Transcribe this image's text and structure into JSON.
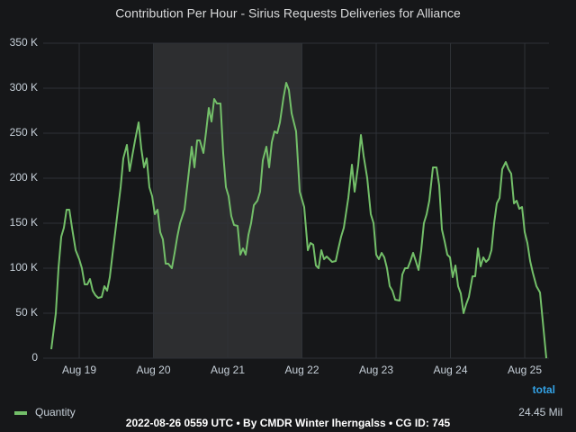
{
  "chart_data": {
    "type": "line",
    "title": "Contribution Per Hour - Sirius Requests Deliveries for Alliance",
    "x": [
      18.624,
      18.685,
      18.721,
      18.758,
      18.794,
      18.83,
      18.867,
      18.903,
      18.952,
      19.0,
      19.036,
      19.073,
      19.109,
      19.145,
      19.182,
      19.218,
      19.255,
      19.303,
      19.339,
      19.376,
      19.412,
      19.448,
      19.485,
      19.521,
      19.558,
      19.594,
      19.642,
      19.679,
      19.715,
      19.752,
      19.8,
      19.836,
      19.873,
      19.909,
      19.945,
      19.982,
      20.018,
      20.055,
      20.091,
      20.127,
      20.164,
      20.2,
      20.248,
      20.285,
      20.321,
      20.358,
      20.418,
      20.467,
      20.515,
      20.552,
      20.588,
      20.624,
      20.673,
      20.709,
      20.745,
      20.782,
      20.818,
      20.855,
      20.903,
      20.939,
      20.976,
      21.012,
      21.048,
      21.085,
      21.133,
      21.17,
      21.206,
      21.242,
      21.279,
      21.315,
      21.352,
      21.4,
      21.436,
      21.473,
      21.521,
      21.558,
      21.594,
      21.63,
      21.667,
      21.703,
      21.752,
      21.788,
      21.824,
      21.861,
      21.921,
      21.97,
      22.03,
      22.079,
      22.115,
      22.152,
      22.188,
      22.224,
      22.261,
      22.297,
      22.333,
      22.37,
      22.406,
      22.455,
      22.491,
      22.527,
      22.564,
      22.624,
      22.673,
      22.709,
      22.758,
      22.794,
      22.83,
      22.879,
      22.927,
      22.964,
      23.0,
      23.036,
      23.073,
      23.109,
      23.145,
      23.182,
      23.218,
      23.255,
      23.315,
      23.352,
      23.388,
      23.424,
      23.461,
      23.497,
      23.533,
      23.57,
      23.606,
      23.642,
      23.679,
      23.715,
      23.764,
      23.812,
      23.848,
      23.885,
      23.921,
      23.958,
      23.994,
      24.03,
      24.067,
      24.103,
      24.139,
      24.176,
      24.212,
      24.248,
      24.297,
      24.333,
      24.37,
      24.406,
      24.442,
      24.479,
      24.515,
      24.552,
      24.588,
      24.624,
      24.661,
      24.697,
      24.745,
      24.782,
      24.818,
      24.855,
      24.891,
      24.927,
      24.964,
      25.0,
      25.036,
      25.073,
      25.109,
      25.158,
      25.206,
      25.291
    ],
    "series": [
      {
        "name": "Quantity",
        "color": "#73bf69",
        "values": [
          10,
          50,
          100,
          135,
          145,
          165,
          165,
          145,
          120,
          110,
          100,
          82,
          82,
          88,
          75,
          70,
          67,
          68,
          80,
          75,
          90,
          115,
          140,
          165,
          190,
          222,
          237,
          208,
          225,
          242,
          262,
          233,
          212,
          222,
          190,
          180,
          160,
          165,
          140,
          132,
          105,
          105,
          100,
          117,
          135,
          150,
          165,
          200,
          235,
          212,
          242,
          242,
          228,
          252,
          278,
          263,
          288,
          283,
          283,
          228,
          190,
          180,
          158,
          148,
          147,
          115,
          122,
          115,
          137,
          150,
          170,
          175,
          185,
          220,
          235,
          212,
          240,
          252,
          250,
          262,
          290,
          306,
          298,
          272,
          252,
          185,
          168,
          120,
          128,
          126,
          103,
          100,
          120,
          110,
          113,
          110,
          107,
          108,
          122,
          135,
          145,
          178,
          215,
          185,
          215,
          248,
          225,
          200,
          160,
          150,
          115,
          110,
          117,
          112,
          100,
          80,
          75,
          65,
          64,
          93,
          100,
          100,
          108,
          117,
          108,
          98,
          120,
          150,
          160,
          175,
          212,
          212,
          192,
          143,
          130,
          115,
          112,
          90,
          103,
          80,
          72,
          50,
          60,
          68,
          91,
          91,
          122,
          102,
          112,
          107,
          110,
          120,
          150,
          172,
          178,
          210,
          218,
          210,
          205,
          172,
          175,
          166,
          168,
          140,
          128,
          108,
          95,
          80,
          73,
          0
        ]
      }
    ],
    "xlim": [
      18.515,
      25.327
    ],
    "xticks": [
      {
        "value": 19,
        "label": "Aug 19"
      },
      {
        "value": 20,
        "label": "Aug 20"
      },
      {
        "value": 21,
        "label": "Aug 21"
      },
      {
        "value": 22,
        "label": "Aug 22"
      },
      {
        "value": 23,
        "label": "Aug 23"
      },
      {
        "value": 24,
        "label": "Aug 24"
      },
      {
        "value": 25,
        "label": "Aug 25"
      }
    ],
    "ylim": [
      0,
      350
    ],
    "yticks": [
      0,
      {
        "value": 50,
        "label": "50 K"
      },
      {
        "value": 100,
        "label": "100 K"
      },
      {
        "value": 150,
        "label": "150 K"
      },
      {
        "value": 200,
        "label": "200 K"
      },
      {
        "value": 250,
        "label": "250 K"
      },
      {
        "value": 300,
        "label": "300 K"
      },
      {
        "value": 350,
        "label": "350 K"
      }
    ],
    "highlight_range": [
      20,
      22
    ],
    "grid": true,
    "legend_header": "total",
    "legend_totals": [
      "24.45 Mil"
    ],
    "footer": "2022-08-26 0559 UTC • By CMDR Winter Iherngalss • CG ID: 745"
  }
}
